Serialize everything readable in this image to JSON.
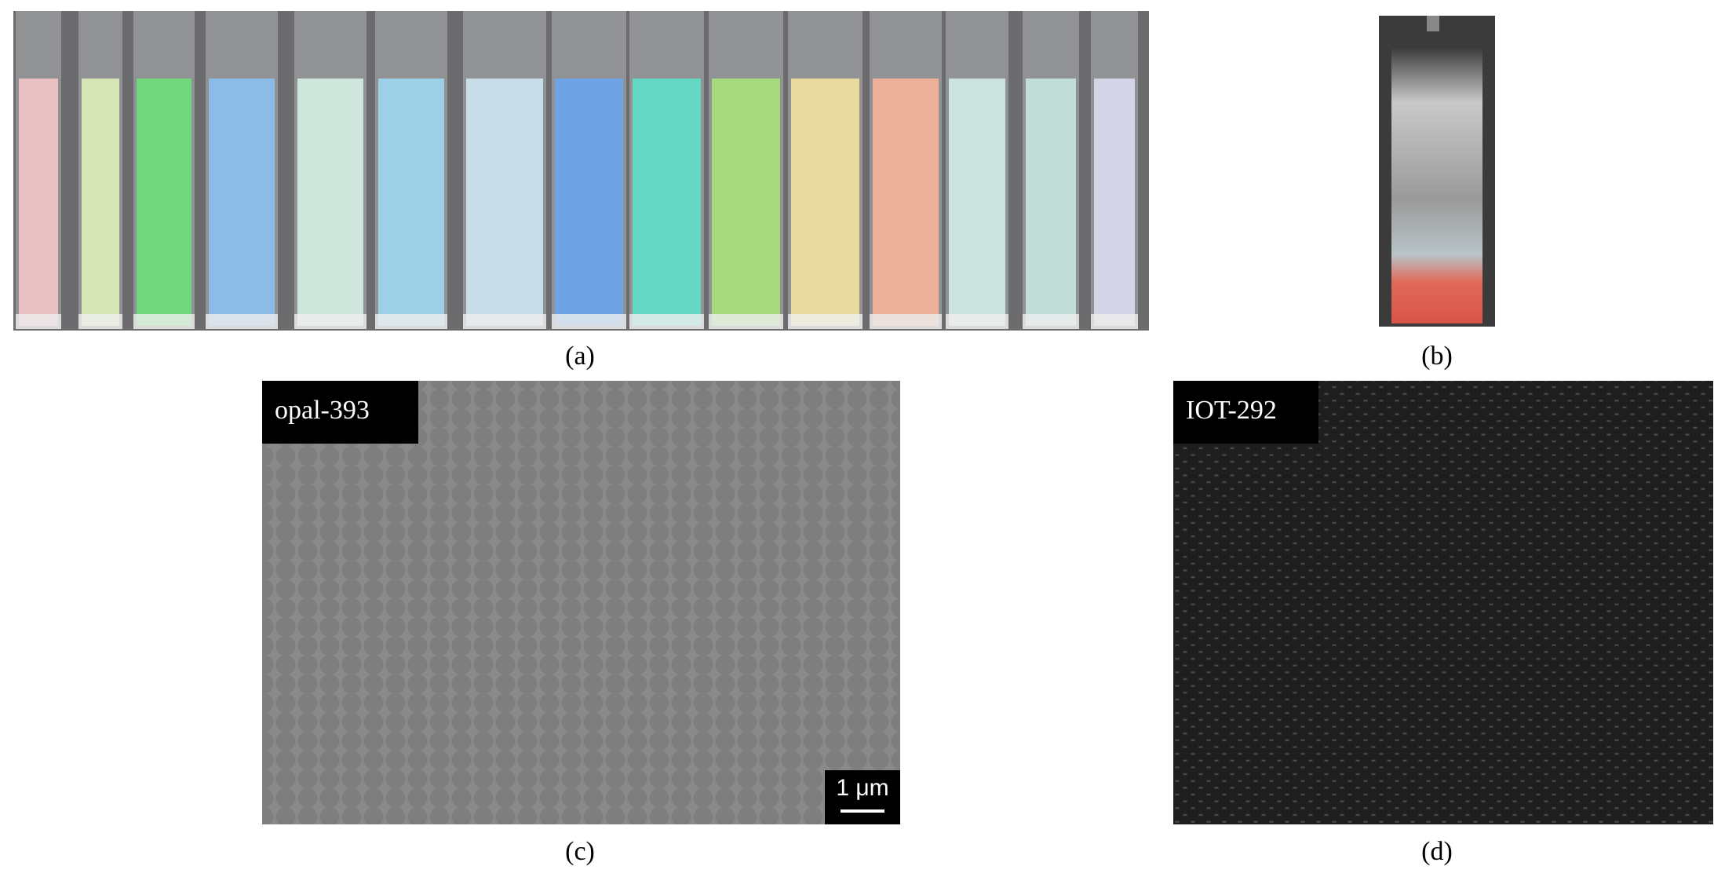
{
  "panels": [
    {
      "caption": "(a)"
    },
    {
      "caption": "(b)"
    },
    {
      "caption": "(c)",
      "label": "opal-393",
      "scale_bar": "1 μm"
    },
    {
      "caption": "(d)",
      "label": "IOT-292"
    }
  ]
}
